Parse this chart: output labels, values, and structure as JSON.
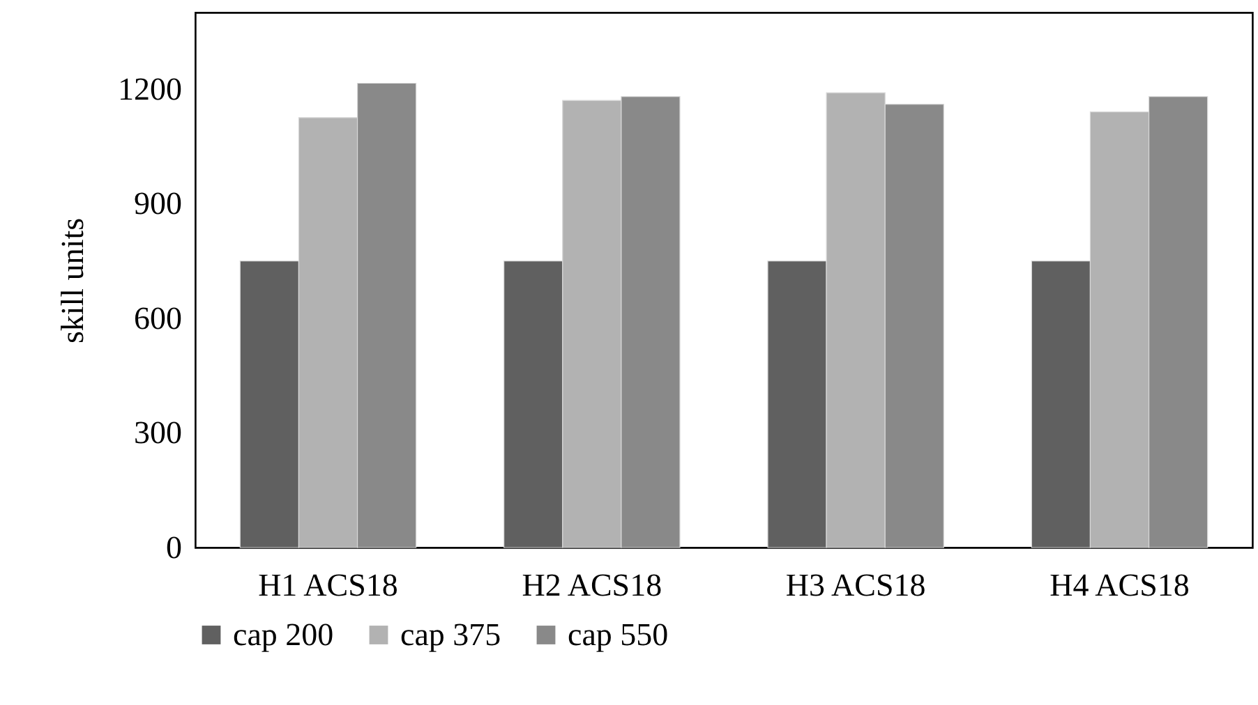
{
  "chart_data": {
    "type": "bar",
    "ylabel": "skill units",
    "categories": [
      "H1 ACS18",
      "H2 ACS18",
      "H3 ACS18",
      "H4 ACS18"
    ],
    "series": [
      {
        "name": "cap 200",
        "color": "#606060",
        "values": [
          750,
          750,
          750,
          750
        ]
      },
      {
        "name": "cap 375",
        "color": "#b2b2b2",
        "values": [
          1125,
          1170,
          1190,
          1140
        ]
      },
      {
        "name": "cap 550",
        "color": "#898989",
        "values": [
          1215,
          1180,
          1160,
          1180
        ]
      }
    ],
    "ylim": [
      0,
      1400
    ],
    "yticks": [
      0,
      300,
      600,
      900,
      1200
    ],
    "grid": false,
    "legend": "bottom"
  }
}
